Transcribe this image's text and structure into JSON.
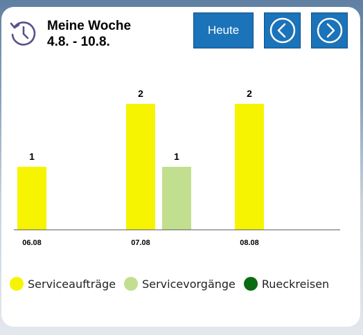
{
  "header": {
    "icon": "history-icon",
    "title": "Meine Woche",
    "date_range": "4.8. - 10.8."
  },
  "buttons": {
    "today_label": "Heute",
    "prev_icon": "chevron-left-icon",
    "next_icon": "chevron-right-icon"
  },
  "colors": {
    "button": "#1b73b9",
    "serviceauftraege": "#f6f400",
    "servicevorgaenge": "#c2df8f",
    "rueckreisen": "#0b6b13"
  },
  "chart_data": {
    "type": "bar",
    "categories": [
      "06.08",
      "07.08",
      "08.08"
    ],
    "series": [
      {
        "name": "Serviceaufträge",
        "values": [
          1,
          2,
          2
        ],
        "color": "#f6f400"
      },
      {
        "name": "Servicevorgänge",
        "values": [
          0,
          1,
          0
        ],
        "color": "#c2df8f"
      },
      {
        "name": "Rueckreisen",
        "values": [
          0,
          0,
          0
        ],
        "color": "#0b6b13"
      }
    ],
    "ylim": [
      0,
      2
    ],
    "grid": false,
    "legend": "bottom",
    "data_labels": true
  }
}
